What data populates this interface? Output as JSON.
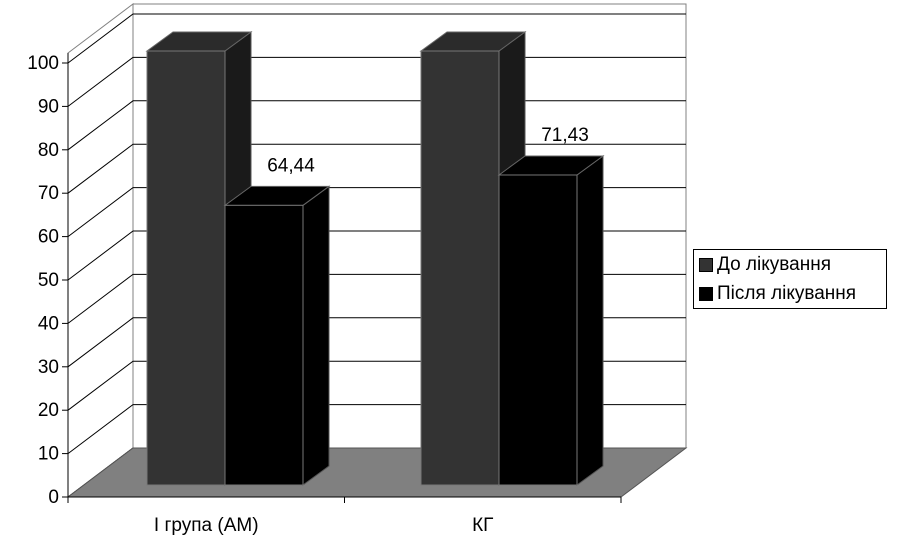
{
  "chart_data": {
    "type": "bar",
    "style": "3d-clustered-column",
    "categories": [
      "І група (АМ)",
      "КГ"
    ],
    "series": [
      {
        "name": "До лікування",
        "values": [
          100,
          100
        ],
        "color": "#333333"
      },
      {
        "name": "Після лікування",
        "values": [
          64.44,
          71.43
        ],
        "color": "#000000"
      }
    ],
    "data_labels": [
      {
        "category": "І група (АМ)",
        "series": "Після лікування",
        "text": "64,44"
      },
      {
        "category": "КГ",
        "series": "Після лікування",
        "text": "71,43"
      }
    ],
    "y_ticks": [
      "0",
      "10",
      "20",
      "30",
      "40",
      "50",
      "60",
      "70",
      "80",
      "90",
      "100"
    ],
    "ylim": [
      0,
      100
    ],
    "grid": true,
    "legend_position": "right",
    "colors": {
      "floor": "#808080",
      "gridline": "#000000",
      "background": "#ffffff"
    }
  }
}
